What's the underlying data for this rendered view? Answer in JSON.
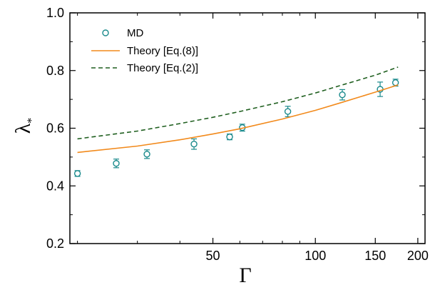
{
  "chart_data": {
    "type": "scatter",
    "xlabel": "Γ",
    "ylabel_main": "λ",
    "ylabel_sub": "*",
    "x_scale": "log",
    "xlim": [
      19,
      210
    ],
    "ylim": [
      0.2,
      1.0
    ],
    "x_ticks": [
      50,
      100,
      150,
      200
    ],
    "x_tick_labels": [
      "50",
      "100",
      "150",
      "200"
    ],
    "y_ticks": [
      0.2,
      0.4,
      0.6,
      0.8,
      1.0
    ],
    "y_tick_labels": [
      "0.2",
      "0.4",
      "0.6",
      "0.8",
      "1.0"
    ],
    "legend_position": "top-left",
    "series": [
      {
        "name": "MD",
        "kind": "markers",
        "color": "#1a8a8c",
        "x": [
          20,
          26,
          32,
          44,
          56,
          61,
          83,
          120,
          155,
          172
        ],
        "y": [
          0.443,
          0.478,
          0.51,
          0.545,
          0.57,
          0.602,
          0.658,
          0.716,
          0.735,
          0.758
        ],
        "err": [
          0.01,
          0.015,
          0.015,
          0.018,
          0.01,
          0.012,
          0.018,
          0.018,
          0.025,
          0.012
        ]
      },
      {
        "name": "Theory [Eq.(8)]",
        "kind": "solid",
        "color": "#f28a1c",
        "x": [
          20,
          30,
          40,
          50,
          60,
          80,
          100,
          120,
          150,
          175
        ],
        "y": [
          0.516,
          0.538,
          0.56,
          0.58,
          0.598,
          0.632,
          0.662,
          0.69,
          0.725,
          0.75
        ]
      },
      {
        "name": "Theory [Eq.(2)]",
        "kind": "dashed",
        "color": "#1f5f1f",
        "x": [
          20,
          30,
          40,
          50,
          60,
          80,
          100,
          120,
          150,
          175
        ],
        "y": [
          0.563,
          0.59,
          0.616,
          0.638,
          0.658,
          0.692,
          0.722,
          0.75,
          0.784,
          0.812
        ]
      }
    ]
  }
}
